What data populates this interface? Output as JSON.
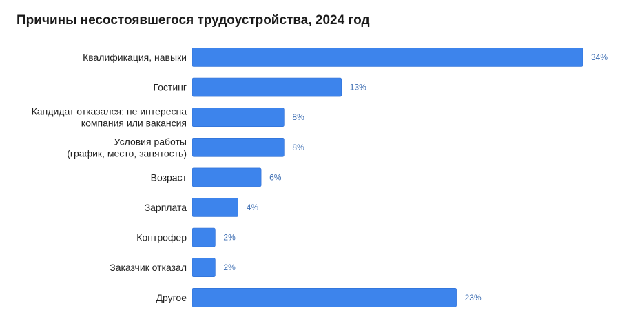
{
  "colors": {
    "bar": "#3d84ec",
    "bar_edge": "#2f6fd4",
    "value_label": "#3f6fb3",
    "category_label": "#1f1f1f"
  },
  "chart_data": {
    "type": "bar",
    "orientation": "horizontal",
    "title": "Причины несостоявшегося трудоустройства, 2024 год",
    "xlabel": "",
    "ylabel": "",
    "grid": false,
    "legend": "none",
    "xlim": [
      0,
      34
    ],
    "value_suffix": "%",
    "categories": [
      [
        "Квалификация, навыки"
      ],
      [
        "Гостинг"
      ],
      [
        "Кандидат отказался: не интересна",
        "компания или вакансия"
      ],
      [
        "Условия работы",
        "(график, место, занятость)"
      ],
      [
        "Возраст"
      ],
      [
        "Зарплата"
      ],
      [
        "Контрофер"
      ],
      [
        "Заказчик отказал"
      ],
      [
        "Другое"
      ]
    ],
    "values": [
      34,
      13,
      8,
      8,
      6,
      4,
      2,
      2,
      23
    ]
  }
}
